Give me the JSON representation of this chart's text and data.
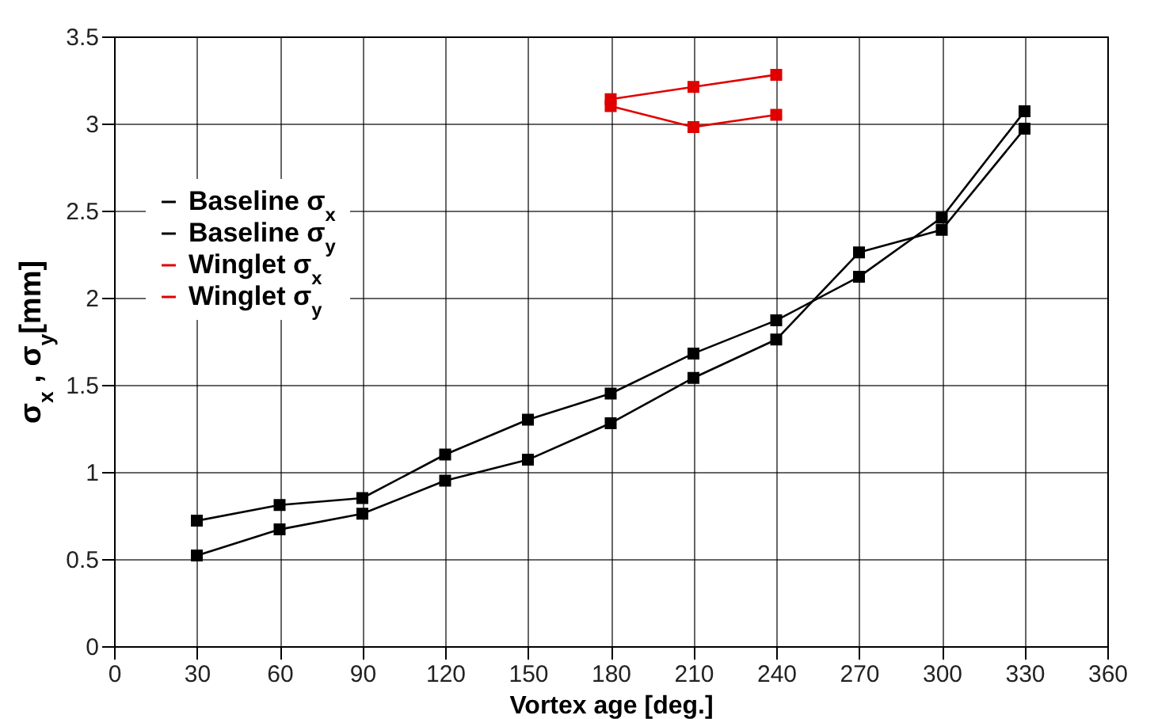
{
  "chart_data": {
    "type": "line",
    "xlabel": "Vortex age [deg.]",
    "ylabel": "σ$_{x}$ , σ$_{y}$[mm]",
    "x": [
      30,
      60,
      90,
      120,
      150,
      180,
      210,
      240,
      270,
      300,
      330
    ],
    "series": [
      {
        "name": "Baseline σ$_{x}$",
        "color": "#000000",
        "marker": "square",
        "values": [
          0.72,
          0.81,
          0.85,
          1.1,
          1.3,
          1.45,
          1.68,
          1.87,
          2.12,
          2.46,
          3.07
        ]
      },
      {
        "name": "Baseline σ$_{y}$",
        "color": "#000000",
        "marker": "square",
        "values": [
          0.52,
          0.67,
          0.76,
          0.95,
          1.07,
          1.28,
          1.54,
          1.76,
          2.26,
          2.39,
          2.97
        ]
      },
      {
        "name": "Winglet σ$_{x}$",
        "color": "#e00000",
        "marker": "square",
        "x": [
          180,
          210,
          240
        ],
        "values": [
          3.1,
          2.98,
          3.05
        ]
      },
      {
        "name": "Winglet σ$_{y}$",
        "color": "#e00000",
        "marker": "square",
        "x": [
          180,
          210,
          240
        ],
        "values": [
          3.14,
          3.21,
          3.28
        ]
      }
    ],
    "xlim": [
      0,
      360
    ],
    "xticks": [
      0,
      30,
      60,
      90,
      120,
      150,
      180,
      210,
      240,
      270,
      300,
      330,
      360
    ],
    "ylim": [
      0,
      3.5
    ],
    "yticks": [
      0,
      0.5,
      1,
      1.5,
      2,
      2.5,
      3,
      3.5
    ],
    "grid": true,
    "legend": "top left",
    "line_style": "solid"
  }
}
